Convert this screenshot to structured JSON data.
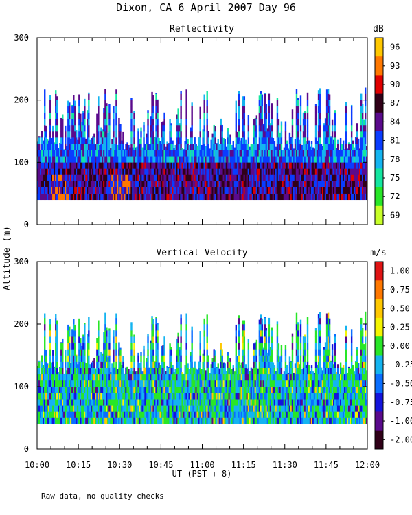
{
  "title": "Dixon, CA   6 April 2007   Day  96",
  "ylabel": "Altitude (m)",
  "xlabel": "UT  (PST + 8)",
  "footnote": "Raw data, no quality checks",
  "x_ticks": [
    "10:00",
    "10:15",
    "10:30",
    "10:45",
    "11:00",
    "11:15",
    "11:30",
    "11:45",
    "12:00"
  ],
  "y_ticks": [
    "0",
    "100",
    "200",
    "300"
  ],
  "chart_data": [
    {
      "type": "heatmap",
      "title": "Reflectivity",
      "unit": "dB",
      "x_range_ut": [
        "10:00",
        "12:00"
      ],
      "ylim": [
        0,
        300
      ],
      "data_altitude_range_m": [
        40,
        220
      ],
      "colorbar_labels": [
        "96",
        "93",
        "90",
        "87",
        "84",
        "81",
        "78",
        "75",
        "72",
        "69"
      ],
      "colorbar_colors": [
        "#ffc800",
        "#ff7800",
        "#e00000",
        "#300018",
        "#5a0a8c",
        "#0a3cff",
        "#14b4f0",
        "#14e6a0",
        "#28e628",
        "#c8ff28"
      ],
      "dominant": "84-90 dB below 100 m, 81-84 dB 100-200 m, peaks ~93 dB near 10:08 and 10:30"
    },
    {
      "type": "heatmap",
      "title": "Vertical Velocity",
      "unit": "m/s",
      "x_range_ut": [
        "10:00",
        "12:00"
      ],
      "ylim": [
        0,
        300
      ],
      "data_altitude_range_m": [
        40,
        220
      ],
      "colorbar_labels": [
        "1.00",
        "0.75",
        "0.50",
        "0.25",
        "0.00",
        "-0.25",
        "-0.50",
        "-0.75",
        "-1.00",
        "-2.00"
      ],
      "colorbar_colors": [
        "#e01414",
        "#ff7800",
        "#ffc800",
        "#f5f500",
        "#28e628",
        "#14b4f0",
        "#0a6eff",
        "#1414dc",
        "#5a0a8c",
        "#300018"
      ],
      "dominant": "mostly -0.5 to 0.25 m/s"
    }
  ]
}
